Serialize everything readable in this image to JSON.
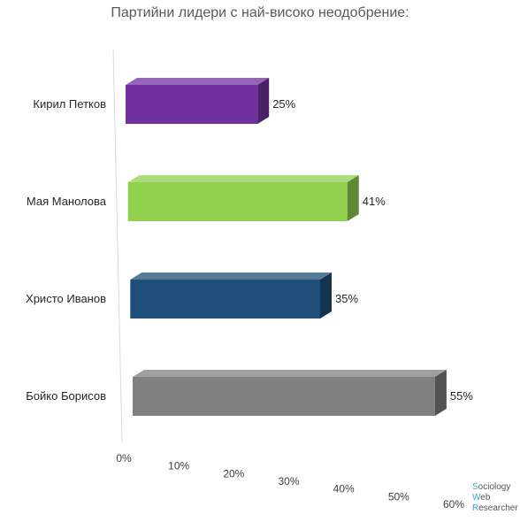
{
  "chart_data": {
    "type": "bar",
    "orientation": "horizontal",
    "title": "Партийни лидери с най-високо неодобрение:",
    "categories": [
      "Кирил Петков",
      "Мая Манолова",
      "Христо Иванов",
      "Бойко Борисов"
    ],
    "values": [
      25,
      41,
      35,
      55
    ],
    "value_labels": [
      "25%",
      "41%",
      "35%",
      "55%"
    ],
    "bar_colors": [
      "#7030a0",
      "#92d050",
      "#1f4e79",
      "#808080"
    ],
    "x_ticks": [
      "0%",
      "10%",
      "20%",
      "30%",
      "40%",
      "50%",
      "60%"
    ],
    "xlim": [
      0,
      60
    ],
    "grid": false,
    "style": "3d"
  },
  "watermark": {
    "lines": [
      {
        "initial": "S",
        "rest": "ociology"
      },
      {
        "initial": "W",
        "rest": "eb"
      },
      {
        "initial": "R",
        "rest": "esearcher"
      }
    ],
    "accent_color": "#3fa7c8"
  }
}
